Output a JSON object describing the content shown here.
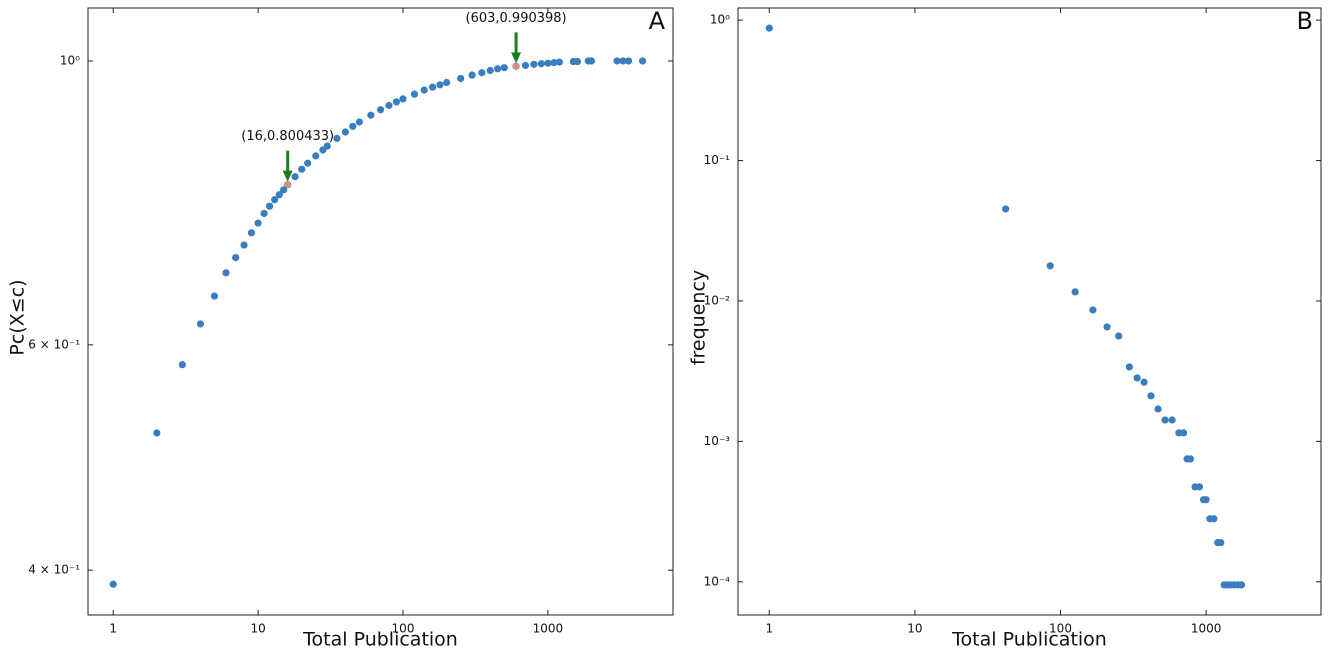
{
  "chart_data": [
    {
      "type": "scatter",
      "panel_label": "A",
      "x_label": "Total Publication",
      "y_label": "Pc(X≤c)",
      "xscale": "log",
      "yscale": "log",
      "color": "#3a7ebf",
      "xlim": [
        0.67,
        7300
      ],
      "ylim": [
        0.369,
        1.1
      ],
      "xticks": [
        1,
        10,
        100,
        1000
      ],
      "yticks": [
        {
          "value": 0.4,
          "label": "4 × 10⁻¹"
        },
        {
          "value": 0.6,
          "label": "6 × 10⁻¹"
        },
        {
          "value": 1,
          "label": "10⁰"
        }
      ],
      "x": [
        1,
        2,
        3,
        4,
        5,
        6,
        7,
        8,
        9,
        10,
        11,
        12,
        13,
        14,
        15,
        16,
        18,
        20,
        22,
        25,
        28,
        30,
        35,
        40,
        45,
        50,
        60,
        70,
        80,
        90,
        100,
        120,
        140,
        160,
        180,
        200,
        250,
        300,
        350,
        400,
        450,
        500,
        603,
        700,
        800,
        900,
        1000,
        1100,
        1200,
        1500,
        1600,
        1900,
        2000,
        3000,
        3300,
        3600,
        4500
      ],
      "values": [
        0.39,
        0.512,
        0.579,
        0.623,
        0.655,
        0.683,
        0.702,
        0.718,
        0.734,
        0.747,
        0.76,
        0.77,
        0.779,
        0.786,
        0.793,
        0.800433,
        0.812,
        0.823,
        0.832,
        0.843,
        0.852,
        0.858,
        0.87,
        0.88,
        0.889,
        0.896,
        0.907,
        0.916,
        0.923,
        0.929,
        0.934,
        0.942,
        0.949,
        0.954,
        0.958,
        0.962,
        0.969,
        0.975,
        0.979,
        0.983,
        0.986,
        0.988,
        0.990398,
        0.992,
        0.994,
        0.995,
        0.996,
        0.997,
        0.998,
        0.999,
        0.999,
        1,
        1,
        1,
        1,
        1,
        1
      ],
      "annotation_color": "#f08a78",
      "arrow_color": "#1e7d1e",
      "annotations": [
        {
          "text": "(16,0.800433)",
          "x": 16,
          "y": 0.800433
        },
        {
          "text": "(603,0.990398)",
          "x": 603,
          "y": 0.990398
        }
      ]
    },
    {
      "type": "scatter",
      "panel_label": "B",
      "x_label": "Total Publication",
      "y_label": "frequency",
      "xscale": "log",
      "yscale": "log",
      "color": "#3a7ebf",
      "xlim": [
        0.61,
        6150
      ],
      "ylim": [
        5.8e-05,
        1.22
      ],
      "xticks": [
        1,
        10,
        100,
        1000
      ],
      "yticks": [
        {
          "value": 0.0001,
          "label": "10⁻⁴"
        },
        {
          "value": 0.001,
          "label": "10⁻³"
        },
        {
          "value": 0.01,
          "label": "10⁻²"
        },
        {
          "value": 0.1,
          "label": "10⁻¹"
        },
        {
          "value": 1,
          "label": "10⁰"
        }
      ],
      "x": [
        1,
        42,
        85,
        126,
        167,
        209,
        251,
        297,
        336,
        375,
        418,
        468,
        522,
        584,
        650,
        700,
        740,
        780,
        840,
        900,
        960,
        1000,
        1060,
        1130,
        1200,
        1260,
        1330,
        1400,
        1480,
        1560,
        1650,
        1750
      ],
      "values": [
        0.877,
        0.0452,
        0.0178,
        0.0116,
        0.00863,
        0.00653,
        0.00563,
        0.00339,
        0.00283,
        0.00264,
        0.00211,
        0.0017,
        0.00142,
        0.00142,
        0.00115,
        0.00115,
        0.00075,
        0.00075,
        0.000474,
        0.000474,
        0.000384,
        0.000384,
        0.000281,
        0.000281,
        0.00019,
        0.00019,
        9.5e-05,
        9.5e-05,
        9.5e-05,
        9.5e-05,
        9.5e-05,
        9.5e-05
      ]
    }
  ]
}
